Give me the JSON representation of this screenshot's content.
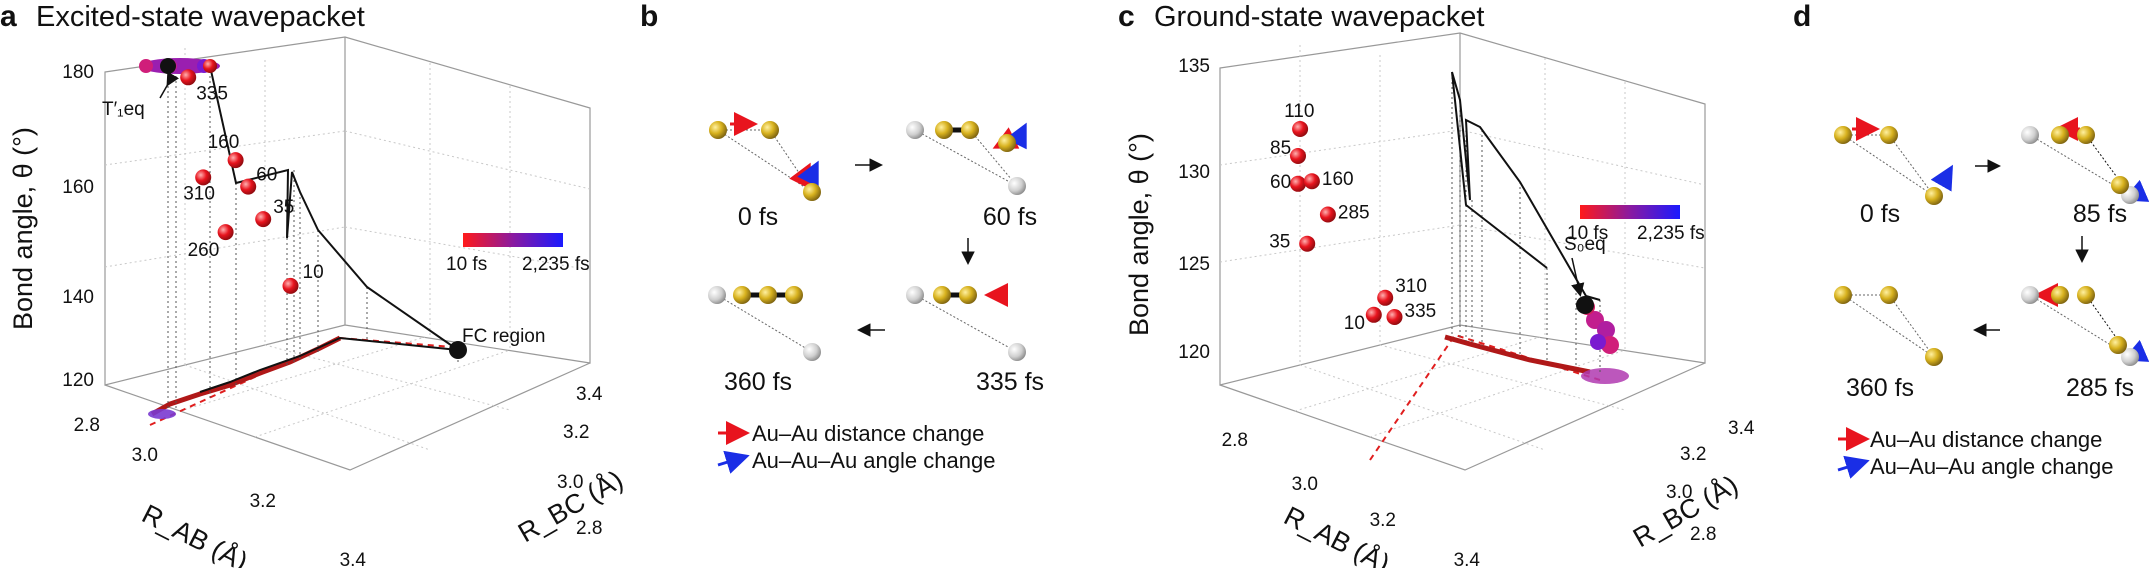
{
  "panels": [
    {
      "letter": "a",
      "title": "Excited-state wavepacket"
    },
    {
      "letter": "b",
      "title": ""
    },
    {
      "letter": "c",
      "title": "Ground-state wavepacket"
    },
    {
      "letter": "d",
      "title": ""
    }
  ],
  "colors": {
    "early": "#ff1a1a",
    "mid": "#8a1aa0",
    "late": "#1a1aff",
    "distance_arrow": "#e8141e",
    "angle_arrow": "#1a2ee6",
    "atom_gold": "#d8b21e",
    "atom_grey": "#d0d0d0",
    "projection": "#e01e1e"
  },
  "chart_data": [
    {
      "type": "scatter",
      "panel": "a",
      "title": "Excited-state wavepacket",
      "xlabel": "R_AB (Å)",
      "ylabel": "R_BC (Å)",
      "zlabel": "Bond angle, θ (°)",
      "xlim": [
        2.8,
        3.4
      ],
      "ylim": [
        2.8,
        3.4
      ],
      "zlim": [
        120,
        180
      ],
      "x_ticks": [
        "2.8",
        "3.0",
        "3.2",
        "3.4"
      ],
      "y_ticks": [
        "2.8",
        "3.0",
        "3.2",
        "3.4"
      ],
      "z_ticks": [
        "120",
        "140",
        "160",
        "180"
      ],
      "colorbar": {
        "min_label": "10 fs",
        "max_label": "2,235 fs"
      },
      "points": [
        {
          "t": 10,
          "label": "10",
          "x": 3.12,
          "y": 3.22,
          "z": 141
        },
        {
          "t": 35,
          "label": "35",
          "x": 3.05,
          "y": 3.18,
          "z": 153
        },
        {
          "t": 60,
          "label": "60",
          "x": 3.02,
          "y": 3.15,
          "z": 159
        },
        {
          "t": 160,
          "label": "160",
          "x": 3.0,
          "y": 3.12,
          "z": 164
        },
        {
          "t": 260,
          "label": "260",
          "x": 2.98,
          "y": 3.1,
          "z": 150
        },
        {
          "t": 310,
          "label": "310",
          "x": 2.93,
          "y": 3.06,
          "z": 160
        },
        {
          "t": 335,
          "label": "335",
          "x": 2.9,
          "y": 3.03,
          "z": 179
        }
      ],
      "annotations": [
        {
          "text": "FC region",
          "x": 3.25,
          "y": 3.38,
          "z": 127
        },
        {
          "text": "T′₁eq",
          "x": 2.85,
          "y": 2.95,
          "z": 180
        }
      ]
    },
    {
      "type": "scatter",
      "panel": "c",
      "title": "Ground-state wavepacket",
      "xlabel": "R_AB (Å)",
      "ylabel": "R_BC (Å)",
      "zlabel": "Bond angle, θ (°)",
      "xlim": [
        2.8,
        3.4
      ],
      "ylim": [
        2.8,
        3.4
      ],
      "zlim": [
        120,
        135
      ],
      "x_ticks": [
        "2.8",
        "3.0",
        "3.2",
        "3.4"
      ],
      "y_ticks": [
        "2.8",
        "3.0",
        "3.2",
        "3.4"
      ],
      "z_ticks": [
        "120",
        "125",
        "130",
        "135"
      ],
      "colorbar": {
        "min_label": "10 fs",
        "max_label": "2,235 fs"
      },
      "points": [
        {
          "t": 10,
          "label": "10",
          "x": 3.05,
          "y": 3.2,
          "z": 124
        },
        {
          "t": 35,
          "label": "35",
          "x": 2.95,
          "y": 3.02,
          "z": 127.8
        },
        {
          "t": 60,
          "label": "60",
          "x": 2.93,
          "y": 3.0,
          "z": 131
        },
        {
          "t": 85,
          "label": "85",
          "x": 2.93,
          "y": 3.0,
          "z": 132.5
        },
        {
          "t": 110,
          "label": "110",
          "x": 2.94,
          "y": 3.0,
          "z": 134
        },
        {
          "t": 160,
          "label": "160",
          "x": 2.96,
          "y": 3.03,
          "z": 131.2
        },
        {
          "t": 285,
          "label": "285",
          "x": 3.0,
          "y": 3.06,
          "z": 129.5
        },
        {
          "t": 310,
          "label": "310",
          "x": 3.08,
          "y": 3.22,
          "z": 125
        },
        {
          "t": 335,
          "label": "335",
          "x": 3.1,
          "y": 3.24,
          "z": 124
        }
      ],
      "annotations": [
        {
          "text": "S₀eq",
          "x": 3.16,
          "y": 3.3,
          "z": 122
        }
      ]
    }
  ],
  "schematics": [
    {
      "panel": "b",
      "times": [
        "0 fs",
        "60 fs",
        "360 fs",
        "335 fs"
      ]
    },
    {
      "panel": "d",
      "times": [
        "0 fs",
        "85 fs",
        "360 fs",
        "285 fs"
      ]
    }
  ],
  "legend": {
    "distance": "Au–Au distance change",
    "angle": "Au–Au–Au angle change"
  }
}
